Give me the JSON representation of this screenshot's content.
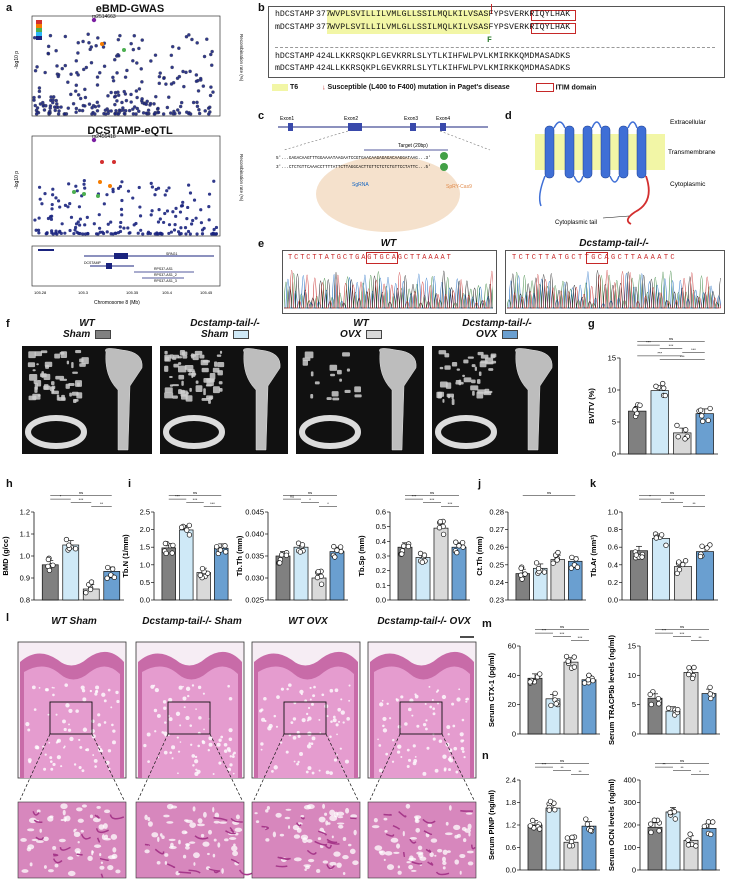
{
  "panels": {
    "a": "a",
    "b": "b",
    "c": "c",
    "d": "d",
    "e": "e",
    "f": "f",
    "g": "g",
    "h": "h",
    "i": "i",
    "j": "j",
    "k": "k",
    "l": "l",
    "m": "m",
    "n": "n"
  },
  "panel_a": {
    "top_title": "eBMD-GWAS",
    "top_snp": "rs2514663",
    "bottom_title": "DCSTAMP-eQTL",
    "bottom_snp": "rs2456418",
    "ylabel_left": "-log10 p",
    "ylabel_right": "Recombination rate (%)",
    "xlabel": "Chromosome 8 (Mb)",
    "x_ticks": [
      "105.28",
      "105.3",
      "105.35",
      "105.4",
      "105.45"
    ],
    "genes": [
      "SPAG1",
      "DCSTAMP",
      "RPS37-AS1",
      "RPS37-AS1_2",
      "RPS37-AS1_3"
    ]
  },
  "panel_b": {
    "row1_label": "hDCSTAMP",
    "row1_pos": "377",
    "row1_seq": "WVPLSVILLILVMLGLLSSILMQLKILVSASFYPSVERKRIQYLHAK",
    "row2_label": "mDCSTAMP",
    "row2_pos": "377",
    "row2_seq": "WVPLSVILLILVMLGLLSSILMQLKILVSASFYPSVERKRIQYLHAK",
    "mut_letter": "F",
    "row3_label": "hDCSTAMP",
    "row3_pos": "424",
    "row3_seq": "LLKKRSQKPLGEVKRRLSLYTLKIHFWLPVLKMIRKKQMDMASADKS",
    "row4_label": "mDCSTAMP",
    "row4_pos": "424",
    "row4_seq": "LLKKRSQKPLGEVKRRLSLYTLKIHFWLPVLKMIRKKQMDMASADKS",
    "legend_tm": "T6",
    "legend_mut": "Susceptible (L400 to F400) mutation in Paget's disease",
    "legend_itim": "ITIM domain"
  },
  "panel_c": {
    "exons": [
      "Exon1",
      "Exon2",
      "Exon3",
      "Exon4"
    ],
    "target": "Target (20bp)",
    "seq_top": "5'...GAGACAAGTTTGGAAAATAAGAATCCGTGAACAAGAGAGACAAGGATAAG...3'",
    "seq_bot": "3'...CTCTGTTCAAACCTTTTATTCTTAGGCACTTGTTCTCTCTGTTCCTATTC...5'",
    "sgrna": "SgRNA",
    "cas9": "SpRY-Cas9"
  },
  "panel_d": {
    "extracellular": "Extracellular",
    "transmembrane": "Transmembrane",
    "cytoplasmic": "Cytoplasmic",
    "tail": "Cytoplasmic tail"
  },
  "panel_e": {
    "wt_label": "WT",
    "ko_label": "Dcstamp-tail-/-",
    "wt_seq": "TCTCTTATGCTGAGTGCAGCTTAAAAT",
    "ko_seq": "TCTCTTATGCTTGCAGCTTAAAATC"
  },
  "panel_f": {
    "groups": [
      {
        "line1": "WT",
        "line2": "Sham",
        "color": "#808080"
      },
      {
        "line1": "Dcstamp-tail-/-",
        "line2": "Sham",
        "color": "#cfe9f7"
      },
      {
        "line1": "WT",
        "line2": "OVX",
        "color": "#d9d9d9"
      },
      {
        "line1": "Dcstamp-tail-/-",
        "line2": "OVX",
        "color": "#6a9fd0"
      }
    ]
  },
  "panel_l": {
    "groups": [
      "WT Sham",
      "Dcstamp-tail-/- Sham",
      "WT OVX",
      "Dcstamp-tail-/- OVX"
    ]
  },
  "chart_data": [
    {
      "id": "g",
      "type": "bar",
      "ylabel": "BV/TV (%)",
      "ylim": [
        0,
        15
      ],
      "yticks": [
        "0",
        "5",
        "10",
        "15"
      ],
      "values": [
        6.7,
        9.9,
        3.3,
        6.3
      ],
      "sig": [
        "ns",
        "***",
        "***",
        "***",
        "***",
        "***"
      ]
    },
    {
      "id": "h",
      "type": "bar",
      "ylabel": "BMD (g/cc)",
      "ylim": [
        0.8,
        1.2
      ],
      "yticks": [
        "0.8",
        "0.9",
        "1.0",
        "1.1",
        "1.2"
      ],
      "values": [
        0.96,
        1.05,
        0.85,
        0.93
      ],
      "sig": [
        "ns",
        "*",
        "***",
        "**"
      ]
    },
    {
      "id": "i1",
      "type": "bar",
      "ylabel": "Tb.N (1/mm)",
      "ylim": [
        0.0,
        2.5
      ],
      "yticks": [
        "0.0",
        "0.5",
        "1.0",
        "1.5",
        "2.0",
        "2.5"
      ],
      "values": [
        1.48,
        1.99,
        0.78,
        1.47
      ],
      "sig": [
        "ns",
        "***",
        "***",
        "***"
      ]
    },
    {
      "id": "i2",
      "type": "bar",
      "ylabel": "Tb.Th (mm)",
      "ylim": [
        0.025,
        0.045
      ],
      "yticks": [
        "0.025",
        "0.030",
        "0.035",
        "0.040",
        "0.045"
      ],
      "values": [
        0.035,
        0.037,
        0.03,
        0.036
      ],
      "sig": [
        "ns",
        "ns",
        "*",
        "*"
      ]
    },
    {
      "id": "i3",
      "type": "bar",
      "ylabel": "Tb.Sp (mm)",
      "ylim": [
        0.0,
        0.6
      ],
      "yticks": [
        "0.0",
        "0.1",
        "0.2",
        "0.3",
        "0.4",
        "0.5",
        "0.6"
      ],
      "values": [
        0.36,
        0.29,
        0.49,
        0.36
      ],
      "sig": [
        "ns",
        "***",
        "***",
        "***"
      ]
    },
    {
      "id": "j",
      "type": "bar",
      "ylabel": "Ct.Th (mm)",
      "ylim": [
        0.23,
        0.28
      ],
      "yticks": [
        "0.23",
        "0.24",
        "0.25",
        "0.26",
        "0.27",
        "0.28"
      ],
      "values": [
        0.245,
        0.248,
        0.253,
        0.252
      ],
      "sig": [
        "ns"
      ]
    },
    {
      "id": "k",
      "type": "bar",
      "ylabel": "Tb.Ar (mm²)",
      "ylim": [
        0.0,
        1.0
      ],
      "yticks": [
        "0.0",
        "0.2",
        "0.4",
        "0.6",
        "0.8",
        "1.0"
      ],
      "values": [
        0.56,
        0.7,
        0.38,
        0.55
      ],
      "sig": [
        "ns",
        "*",
        "***",
        "**"
      ]
    },
    {
      "id": "m1",
      "type": "bar",
      "ylabel": "Serum CTX-1 (pg/ml)",
      "ylim": [
        0,
        60
      ],
      "yticks": [
        "0",
        "20",
        "40",
        "60"
      ],
      "values": [
        38,
        24,
        49,
        37
      ],
      "sig": [
        "ns",
        "***",
        "***",
        "***"
      ]
    },
    {
      "id": "m2",
      "type": "bar",
      "ylabel": "Serum TRACP5b levels (ng/ml)",
      "ylim": [
        0,
        15
      ],
      "yticks": [
        "0",
        "5",
        "10",
        "15"
      ],
      "values": [
        6.1,
        3.9,
        10.5,
        6.9
      ],
      "sig": [
        "ns",
        "***",
        "***",
        "**"
      ]
    },
    {
      "id": "n1",
      "type": "bar",
      "ylabel": "Serum PINP (ng/ml)",
      "ylim": [
        0.0,
        2.4
      ],
      "yticks": [
        "0.0",
        "0.6",
        "1.2",
        "1.8",
        "2.4"
      ],
      "values": [
        1.2,
        1.65,
        0.74,
        1.17
      ],
      "sig": [
        "ns",
        "***",
        "**",
        "**"
      ]
    },
    {
      "id": "n2",
      "type": "bar",
      "ylabel": "Serum OCN levels (ng/ml)",
      "ylim": [
        0,
        400
      ],
      "yticks": [
        "0",
        "100",
        "200",
        "300",
        "400"
      ],
      "values": [
        190,
        258,
        132,
        185
      ],
      "sig": [
        "ns",
        "**",
        "**",
        "*"
      ]
    }
  ],
  "bar_colors": [
    "#808080",
    "#cfe9f7",
    "#d9d9d9",
    "#6a9fd0"
  ]
}
